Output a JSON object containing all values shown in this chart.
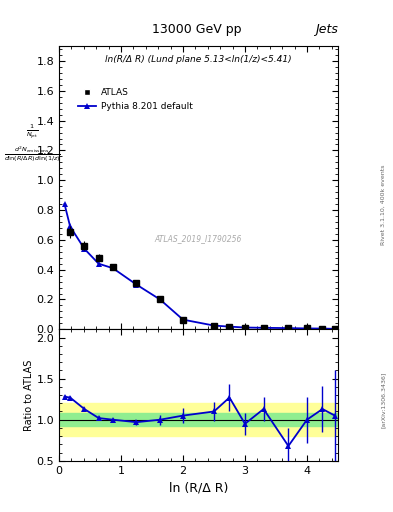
{
  "title_top": "13000 GeV pp",
  "title_right": "Jets",
  "annotation": "ln(R/Δ R) (Lund plane 5.13<ln(1/z)<5.41)",
  "watermark": "ATLAS_2019_I1790256",
  "xlabel": "ln (R/Δ R)",
  "ratio_ylabel": "Ratio to ATLAS",
  "atlas_x": [
    0.18,
    0.41,
    0.64,
    0.87,
    1.25,
    1.63,
    2.0,
    2.5,
    2.75,
    3.0,
    3.3,
    3.7,
    4.0,
    4.25,
    4.45
  ],
  "atlas_y": [
    0.65,
    0.56,
    0.48,
    0.42,
    0.31,
    0.2,
    0.065,
    0.025,
    0.018,
    0.012,
    0.01,
    0.008,
    0.006,
    0.005,
    0.003
  ],
  "atlas_yerr": [
    0.04,
    0.03,
    0.025,
    0.02,
    0.015,
    0.015,
    0.008,
    0.005,
    0.004,
    0.003,
    0.003,
    0.003,
    0.003,
    0.003,
    0.003
  ],
  "pythia_x": [
    0.09,
    0.18,
    0.41,
    0.64,
    0.87,
    1.25,
    1.63,
    2.0,
    2.5,
    2.75,
    3.0,
    3.3,
    3.7,
    4.0,
    4.25,
    4.45
  ],
  "pythia_y": [
    0.84,
    0.69,
    0.54,
    0.44,
    0.41,
    0.3,
    0.2,
    0.065,
    0.025,
    0.018,
    0.012,
    0.01,
    0.008,
    0.006,
    0.005,
    0.003
  ],
  "ratio_pythia_x": [
    0.09,
    0.18,
    0.41,
    0.64,
    0.87,
    1.25,
    1.63,
    2.0,
    2.5,
    2.75,
    3.0,
    3.3,
    3.7,
    4.0,
    4.25,
    4.45
  ],
  "ratio_pythia_y": [
    1.28,
    1.27,
    1.13,
    1.02,
    1.0,
    0.97,
    1.0,
    1.05,
    1.1,
    1.27,
    0.95,
    1.13,
    0.68,
    1.0,
    1.13,
    1.05
  ],
  "ratio_pythia_yerr": [
    0.02,
    0.02,
    0.02,
    0.02,
    0.02,
    0.03,
    0.06,
    0.09,
    0.12,
    0.16,
    0.13,
    0.15,
    0.22,
    0.28,
    0.28,
    0.55
  ],
  "ylim_main": [
    0.0,
    1.9
  ],
  "ylim_ratio": [
    0.5,
    2.1
  ],
  "xlim": [
    0.0,
    4.5
  ],
  "main_yticks": [
    0.0,
    0.2,
    0.4,
    0.6,
    0.8,
    1.0,
    1.2,
    1.4,
    1.6,
    1.8
  ],
  "ratio_yticks": [
    0.5,
    1.0,
    1.5,
    2.0
  ],
  "color_atlas": "#000000",
  "color_pythia": "#0000cc",
  "color_green": "#90EE90",
  "color_yellow": "#FFFF99"
}
